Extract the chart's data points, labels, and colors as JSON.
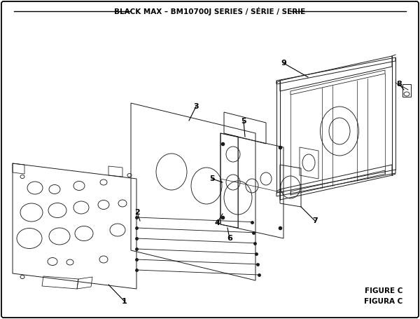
{
  "title": "BLACK MAX – BM10700J SERIES / SÉRIE / SERIE",
  "figure_label": "FIGURE C",
  "figura_label": "FIGURA C",
  "bg_color": "#ffffff",
  "border_color": "#000000",
  "title_fontsize": 7.5,
  "label_fontsize": 7.5,
  "part_fontsize": 7.5,
  "line_color": "#000000",
  "diagram_color": "#1a1a1a",
  "diagram_lw": 0.7
}
